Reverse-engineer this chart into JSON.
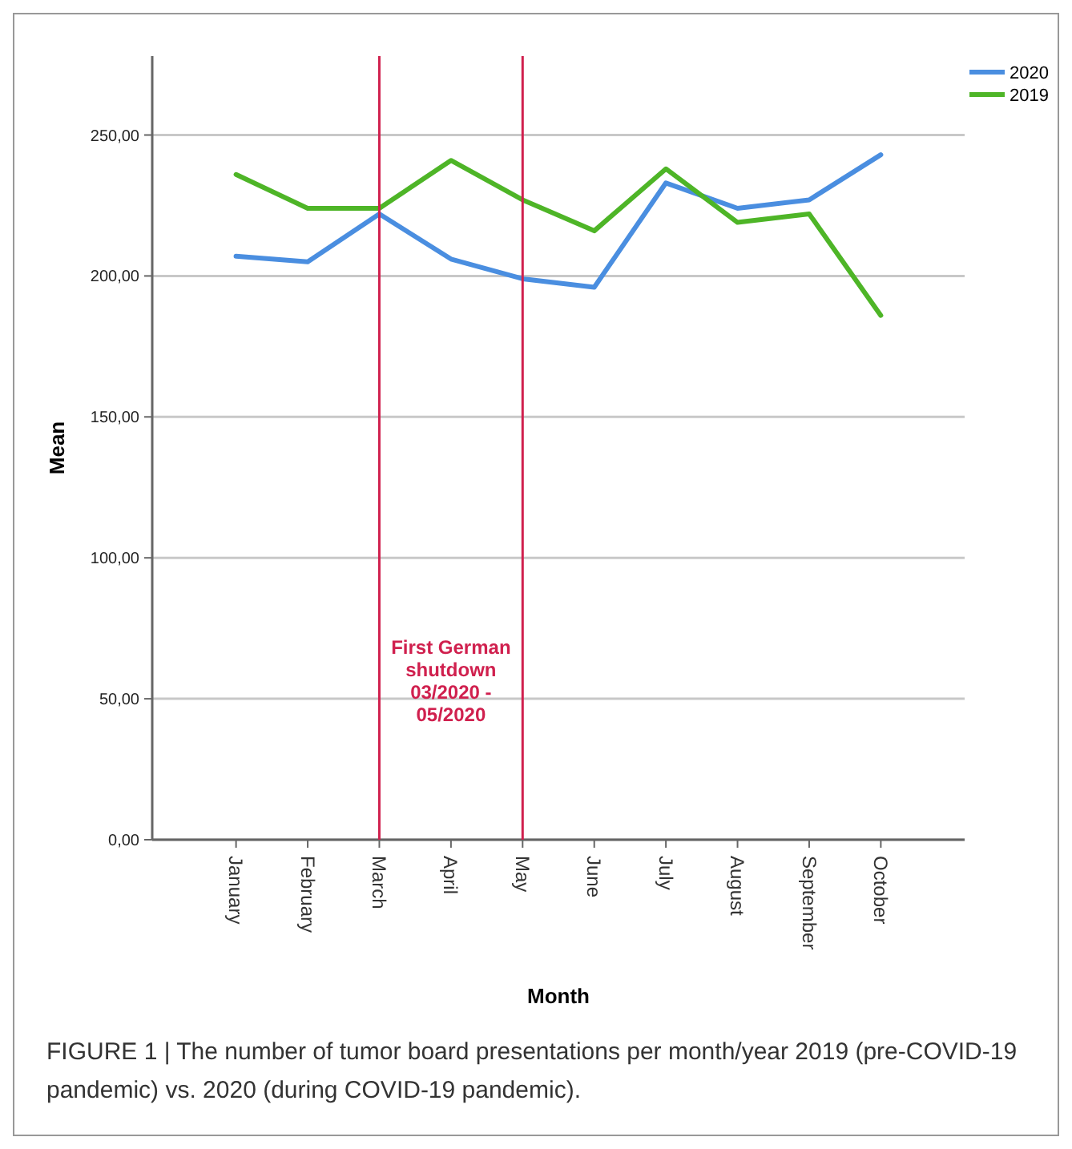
{
  "chart_data": {
    "type": "line",
    "xlabel": "Month",
    "ylabel": "Mean",
    "categories": [
      "January",
      "February",
      "March",
      "April",
      "May",
      "June",
      "July",
      "August",
      "September",
      "October"
    ],
    "series": [
      {
        "name": "2020",
        "color": "#4a8ee0",
        "values": [
          207,
          205,
          222,
          206,
          199,
          196,
          233,
          224,
          227,
          243
        ]
      },
      {
        "name": "2019",
        "color": "#4eb527",
        "values": [
          236,
          224,
          224,
          241,
          227,
          216,
          238,
          219,
          222,
          186
        ]
      }
    ],
    "ylim": [
      0,
      278
    ],
    "yticks": [
      {
        "value": 0,
        "label": "0,00"
      },
      {
        "value": 50,
        "label": "50,00"
      },
      {
        "value": 100,
        "label": "100,00"
      },
      {
        "value": 150,
        "label": "150,00"
      },
      {
        "value": 200,
        "label": "200,00"
      },
      {
        "value": 250,
        "label": "250,00"
      }
    ],
    "grid": "y",
    "legend": "top right",
    "marker": "none",
    "line_style": "solid",
    "ref_lines": [
      {
        "axis": "x",
        "value": "March",
        "color": "#d0204e"
      },
      {
        "axis": "x",
        "value": "May",
        "color": "#d0204e"
      }
    ],
    "annotations": [
      "First German shutdown 03/2020 - 05/2020",
      "FIGURE 1 | The number of tumor board presentations per month/year 2019 (pre-COVID-19 pandemic) vs. 2020 (during COVID-19 pandemic)."
    ]
  }
}
